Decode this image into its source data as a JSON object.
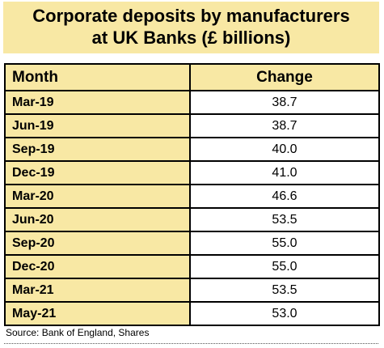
{
  "title_lines": [
    "Corporate deposits by manufacturers",
    "at UK Banks (£ billions)"
  ],
  "columns": [
    "Month",
    "Change"
  ],
  "source": "Source: Bank of England, Shares",
  "colors": {
    "header_fill": "#f8e8a4",
    "border": "#000000"
  },
  "chart_data": {
    "type": "table",
    "title": "Corporate deposits by manufacturers at UK Banks (£ billions)",
    "columns": [
      "Month",
      "Change"
    ],
    "categories": [
      "Mar-19",
      "Jun-19",
      "Sep-19",
      "Dec-19",
      "Mar-20",
      "Jun-20",
      "Sep-20",
      "Dec-20",
      "Mar-21",
      "May-21"
    ],
    "values": [
      "38.7",
      "38.7",
      "40.0",
      "41.0",
      "46.6",
      "53.5",
      "55.0",
      "55.0",
      "53.5",
      "53.0"
    ]
  }
}
